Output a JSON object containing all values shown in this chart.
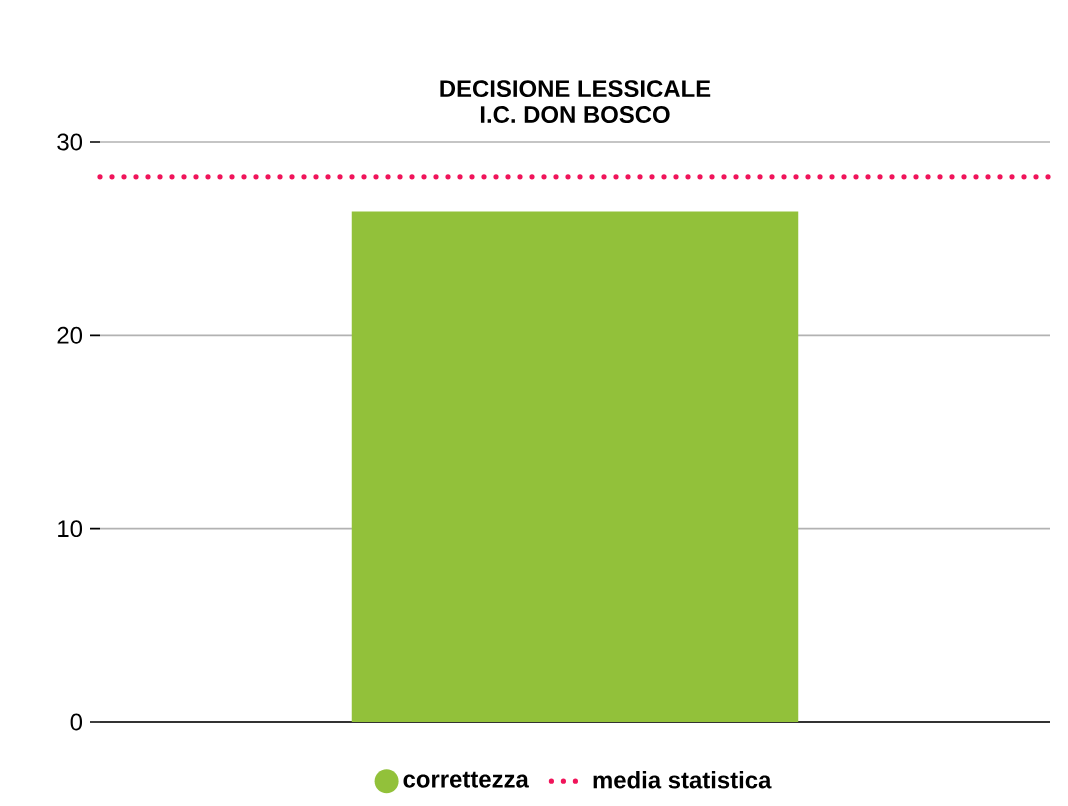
{
  "chart_data": {
    "type": "bar",
    "title": "DECISIONE LESSICALE\nI.C. DON BOSCO",
    "categories": [
      null
    ],
    "series": [
      {
        "name": "correttezza",
        "color": "#92c13a",
        "values": [
          26.4
        ]
      }
    ],
    "ylim": [
      0,
      30
    ],
    "yticks": [
      0,
      10,
      20,
      30
    ],
    "grid": "y",
    "legend": "bottom",
    "ref_lines": [
      {
        "axis": "y",
        "value": 28.2,
        "label": "media statistica",
        "color": "#f0145a",
        "line_style": "dotted"
      }
    ]
  }
}
